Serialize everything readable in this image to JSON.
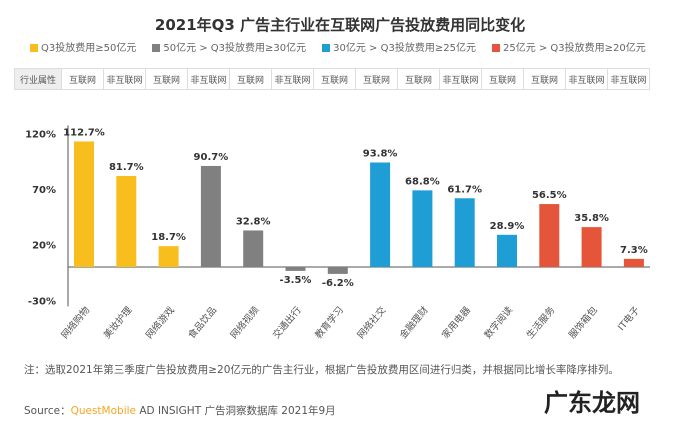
{
  "chart_data": {
    "type": "bar",
    "title": "2021年Q3 广告主行业在互联网广告投放费用同比变化",
    "legend": [
      {
        "label": "Q3投放费用≥50亿元",
        "color": "#F7BE1E"
      },
      {
        "label": "50亿元 > Q3投放费用≥30亿元",
        "color": "#808080"
      },
      {
        "label": "30亿元 > Q3投放费用≥25亿元",
        "color": "#1F9ED6"
      },
      {
        "label": "25亿元 > Q3投放费用≥20亿元",
        "color": "#E5553A"
      }
    ],
    "attr_header": "行业属性",
    "attributes": [
      "互联网",
      "非互联网",
      "互联网",
      "非互联网",
      "互联网",
      "非互联网",
      "互联网",
      "互联网",
      "互联网",
      "非互联网",
      "互联网",
      "互联网",
      "非互联网",
      "非互联网"
    ],
    "categories": [
      "网络购物",
      "美妆护理",
      "网络游戏",
      "食品饮品",
      "网络视频",
      "交通出行",
      "教育学习",
      "网络社交",
      "金融理财",
      "家用电器",
      "数字阅读",
      "生活服务",
      "服饰箱包",
      "IT电子"
    ],
    "values": [
      112.7,
      81.7,
      18.7,
      90.7,
      32.8,
      -3.5,
      -6.2,
      93.8,
      68.8,
      61.7,
      28.9,
      56.5,
      35.8,
      7.3
    ],
    "groups": [
      0,
      0,
      0,
      1,
      1,
      1,
      1,
      2,
      2,
      2,
      2,
      3,
      3,
      3
    ],
    "yticks": [
      120,
      70,
      20,
      -30
    ],
    "ytick_labels": [
      "120%",
      "70%",
      "20%",
      "-30%"
    ],
    "ylim": [
      -30,
      120
    ],
    "grid": false
  },
  "note": "注：选取2021年第三季度广告投放费用≥20亿元的广告主行业，根据广告投放费用区间进行归类，并根据同比增长率降序排列。",
  "source": {
    "prefix": "Source：",
    "brand": "QuestMobile",
    "rest": " AD INSIGHT 广告洞察数据库 2021年9月"
  },
  "watermark": "广东龙网"
}
